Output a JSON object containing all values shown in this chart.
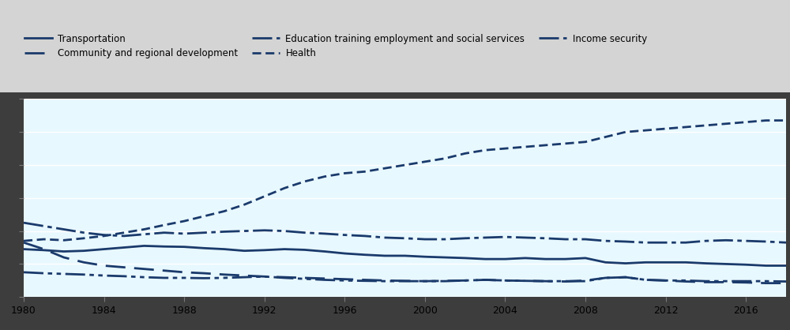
{
  "years": [
    1980,
    1981,
    1982,
    1983,
    1984,
    1985,
    1986,
    1987,
    1988,
    1989,
    1990,
    1991,
    1992,
    1993,
    1994,
    1995,
    1996,
    1997,
    1998,
    1999,
    2000,
    2001,
    2002,
    2003,
    2004,
    2005,
    2006,
    2007,
    2008,
    2009,
    2010,
    2011,
    2012,
    2013,
    2014,
    2015,
    2016,
    2017,
    2018
  ],
  "Transportation": [
    14.5,
    14.2,
    13.8,
    14.0,
    14.5,
    15.0,
    15.5,
    15.3,
    15.2,
    14.8,
    14.5,
    14.0,
    14.2,
    14.5,
    14.3,
    13.8,
    13.2,
    12.8,
    12.5,
    12.5,
    12.2,
    12.0,
    11.8,
    11.5,
    11.5,
    11.8,
    11.5,
    11.5,
    11.8,
    10.5,
    10.2,
    10.5,
    10.5,
    10.5,
    10.2,
    10.0,
    9.8,
    9.5,
    9.5
  ],
  "Health": [
    17.0,
    17.5,
    17.2,
    17.8,
    18.5,
    19.5,
    20.5,
    21.8,
    23.0,
    24.5,
    26.0,
    28.0,
    30.5,
    33.0,
    35.0,
    36.5,
    37.5,
    38.0,
    39.0,
    40.0,
    41.0,
    42.0,
    43.5,
    44.5,
    45.0,
    45.5,
    46.0,
    46.5,
    47.0,
    48.5,
    50.0,
    50.5,
    51.0,
    51.5,
    52.0,
    52.5,
    53.0,
    53.5,
    53.5
  ],
  "Community_and_regional_development": [
    16.5,
    14.5,
    12.0,
    10.5,
    9.5,
    9.0,
    8.5,
    8.0,
    7.5,
    7.2,
    6.8,
    6.5,
    6.2,
    6.0,
    5.8,
    5.6,
    5.4,
    5.2,
    5.0,
    4.9,
    4.8,
    4.9,
    5.0,
    5.2,
    5.0,
    4.9,
    4.8,
    4.7,
    5.0,
    5.8,
    6.0,
    5.2,
    5.0,
    4.7,
    4.5,
    4.5,
    4.4,
    4.2,
    4.2
  ],
  "Education_training": [
    22.5,
    21.5,
    20.5,
    19.5,
    18.8,
    18.5,
    19.0,
    19.5,
    19.2,
    19.5,
    19.8,
    20.0,
    20.2,
    20.0,
    19.5,
    19.2,
    18.8,
    18.5,
    18.0,
    17.8,
    17.5,
    17.5,
    17.8,
    18.0,
    18.2,
    18.0,
    17.8,
    17.5,
    17.5,
    17.0,
    16.8,
    16.5,
    16.5,
    16.5,
    17.0,
    17.2,
    17.0,
    16.8,
    16.5
  ],
  "Income_security": [
    7.5,
    7.2,
    7.0,
    6.8,
    6.5,
    6.3,
    6.0,
    5.8,
    5.8,
    5.7,
    5.8,
    6.0,
    6.2,
    5.8,
    5.5,
    5.2,
    5.0,
    4.9,
    4.8,
    4.8,
    4.8,
    4.8,
    5.0,
    5.2,
    5.0,
    4.9,
    4.8,
    4.8,
    4.8,
    5.8,
    6.0,
    5.2,
    5.0,
    5.0,
    4.8,
    4.8,
    4.8,
    4.8,
    4.7
  ],
  "line_color": "#1a3a6b",
  "bg_color": "#e8f8ff",
  "outer_bg": "#3d3d3d",
  "legend_bg": "#d4d4d4",
  "x_ticks": [
    1980,
    1984,
    1988,
    1992,
    1996,
    2000,
    2004,
    2008,
    2012,
    2016
  ],
  "figsize": [
    10.0,
    4.18
  ],
  "dpi": 100
}
